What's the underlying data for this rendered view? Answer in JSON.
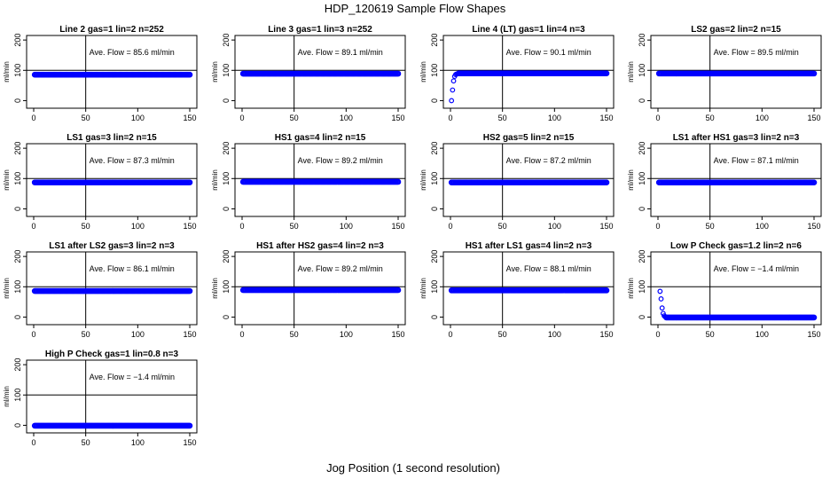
{
  "figure": {
    "title": "HDP_120619  Sample Flow Shapes",
    "xlabel": "Jog Position (1 second resolution)"
  },
  "chart_data": {
    "type": "scatter",
    "xlim": [
      0,
      150
    ],
    "ylim": [
      -25,
      215
    ],
    "xticks": [
      "0",
      "50",
      "100",
      "150"
    ],
    "yticks": [
      "0",
      "100",
      "200"
    ],
    "ylabel": "ml/min",
    "reference_line_y": 100,
    "reference_line_x": 50,
    "point_color": "#0000ff",
    "panels": [
      {
        "title": "Line 2 gas=1 lin=2 n=252",
        "annotation": "Ave. Flow =  85.6  ml/min",
        "shape": "flat",
        "level": 85.6
      },
      {
        "title": "Line 3 gas=1 lin=3 n=252",
        "annotation": "Ave. Flow =  89.1  ml/min",
        "shape": "flat",
        "level": 89.1
      },
      {
        "title": "Line 4 (LT) gas=1 lin=4 n=3",
        "annotation": "Ave. Flow =  90.1  ml/min",
        "shape": "rise",
        "level": 90.1,
        "initial_points": [
          [
            1,
            0
          ],
          [
            2,
            35
          ],
          [
            3,
            65
          ],
          [
            4,
            80
          ],
          [
            5,
            86
          ],
          [
            6,
            88
          ],
          [
            7,
            89
          ]
        ]
      },
      {
        "title": "LS2 gas=2 lin=2 n=15",
        "annotation": "Ave. Flow =  89.5  ml/min",
        "shape": "flat",
        "level": 89.5
      },
      {
        "title": "LS1 gas=3 lin=2 n=15",
        "annotation": "Ave. Flow =  87.3  ml/min",
        "shape": "flat",
        "level": 87.3
      },
      {
        "title": "HS1 gas=4 lin=2 n=15",
        "annotation": "Ave. Flow =  89.2  ml/min",
        "shape": "flat",
        "level": 89.2
      },
      {
        "title": "HS2 gas=5 lin=2 n=15",
        "annotation": "Ave. Flow =  87.2  ml/min",
        "shape": "flat",
        "level": 87.2
      },
      {
        "title": "LS1 after HS1 gas=3 lin=2 n=3",
        "annotation": "Ave. Flow =  87.1  ml/min",
        "shape": "flat",
        "level": 87.1
      },
      {
        "title": "LS1 after LS2 gas=3 lin=2 n=3",
        "annotation": "Ave. Flow =  86.1  ml/min",
        "shape": "flat",
        "level": 86.1
      },
      {
        "title": "HS1 after HS2 gas=4 lin=2 n=3",
        "annotation": "Ave. Flow =  89.2  ml/min",
        "shape": "flat",
        "level": 89.2
      },
      {
        "title": "HS1 after LS1 gas=4 lin=2 n=3",
        "annotation": "Ave. Flow =  88.1  ml/min",
        "shape": "flat",
        "level": 88.1
      },
      {
        "title": "Low P Check gas=1.2 lin=2 n=6",
        "annotation": "Ave. Flow =  −1.4  ml/min",
        "shape": "drop",
        "level": -1.4,
        "initial_points": [
          [
            2,
            85
          ],
          [
            3,
            60
          ],
          [
            4,
            30
          ],
          [
            5,
            12
          ],
          [
            6,
            4
          ],
          [
            7,
            1
          ]
        ]
      },
      {
        "title": "High P Check gas=1 lin=0.8 n=3",
        "annotation": "Ave. Flow =  −1.4  ml/min",
        "shape": "flat",
        "level": -1.4
      }
    ]
  }
}
